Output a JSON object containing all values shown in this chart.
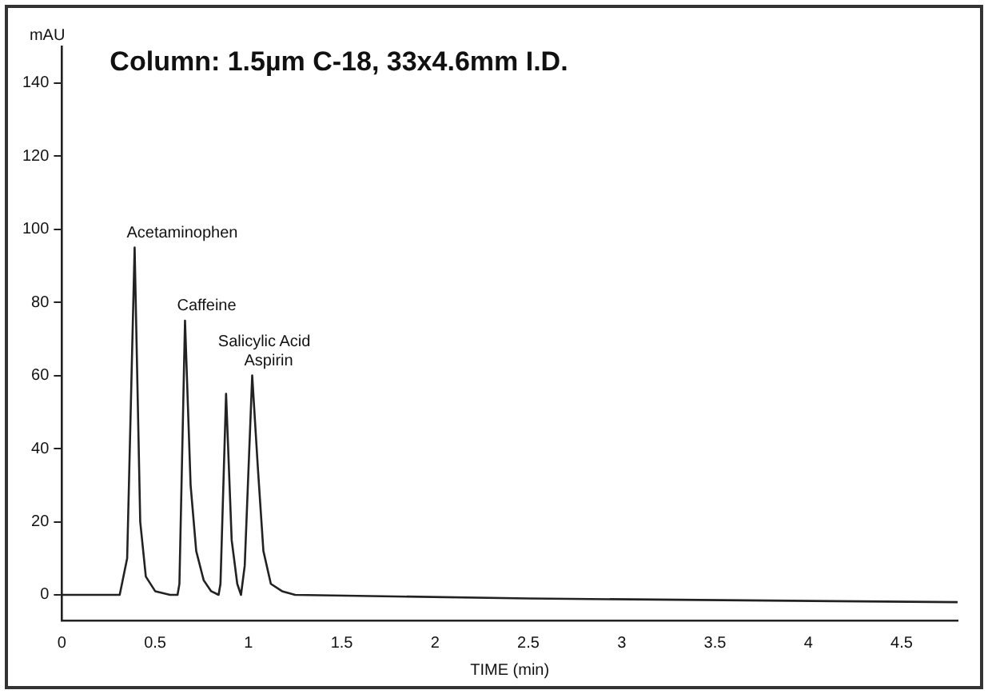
{
  "chart_data": {
    "type": "line",
    "title": "Column: 1.5µm C-18, 33x4.6mm I.D.",
    "xlabel": "TIME (min)",
    "ylabel": "mAU",
    "x": [
      0,
      0.31,
      0.35,
      0.39,
      0.42,
      0.45,
      0.5,
      0.58,
      0.62,
      0.63,
      0.66,
      0.69,
      0.72,
      0.76,
      0.8,
      0.84,
      0.85,
      0.88,
      0.91,
      0.94,
      0.96,
      0.98,
      1.02,
      1.05,
      1.08,
      1.12,
      1.18,
      1.25,
      2.5,
      4.8
    ],
    "series": [
      {
        "color": "#222222",
        "values": [
          0,
          0,
          10,
          95,
          20,
          5,
          1,
          0,
          0,
          3,
          75,
          30,
          12,
          4,
          1,
          0,
          3,
          55,
          15,
          3,
          0,
          8,
          60,
          35,
          12,
          3,
          1,
          0,
          -1,
          -2
        ]
      }
    ],
    "annotations": [
      {
        "text": "Acetaminophen",
        "x": 0.39,
        "y": 95
      },
      {
        "text": "Caffeine",
        "x": 0.66,
        "y": 75
      },
      {
        "text": "Salicylic Acid",
        "x": 0.88,
        "y": 55
      },
      {
        "text": "Aspirin",
        "x": 1.02,
        "y": 60
      }
    ],
    "xlim": [
      0,
      4.8
    ],
    "ylim": [
      -7,
      150
    ],
    "xticks": [
      0,
      0.5,
      1,
      1.5,
      2,
      2.5,
      3,
      3.5,
      4,
      4.5
    ],
    "yticks": [
      0,
      20,
      40,
      60,
      80,
      100,
      120,
      140
    ],
    "grid": false,
    "legend": false,
    "marker": "none",
    "line_style": "solid"
  }
}
